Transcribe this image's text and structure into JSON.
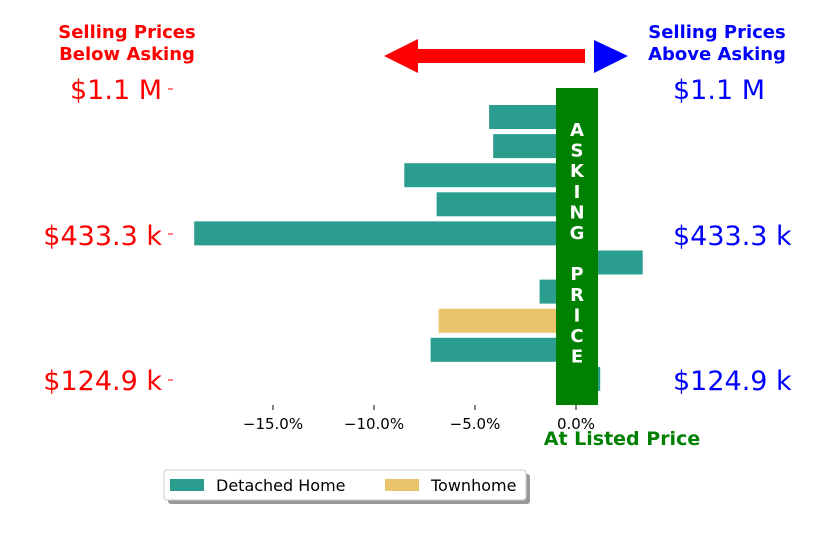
{
  "colors": {
    "below": "#ff0000",
    "above": "#0000ff",
    "asking": "#008000",
    "detached": "#2a9d8f",
    "townhome": "#e9c46a",
    "text": "#000000",
    "white": "#ffffff"
  },
  "header": {
    "below_title_line1": "Selling Prices",
    "below_title_line2": "Below Asking",
    "above_title_line1": "Selling Prices",
    "above_title_line2": "Above Asking"
  },
  "asking_label": "ASKING PRICE",
  "listed_label": "At Listed Price",
  "side_labels": {
    "top": "$1.1 M",
    "middle": "$433.3 k",
    "bottom": "$124.9 k"
  },
  "chart_data": {
    "type": "bar",
    "orientation": "horizontal",
    "xlim": [
      -19.5,
      1.3
    ],
    "xticks": [
      -15,
      -10,
      -5,
      0
    ],
    "tick_labels": [
      "−15.0%",
      "−10.0%",
      "−5.0%",
      "0.0%"
    ],
    "bars": [
      {
        "series": "Detached Home",
        "value": -4.3
      },
      {
        "series": "Detached Home",
        "value": -4.1
      },
      {
        "series": "Detached Home",
        "value": -8.5
      },
      {
        "series": "Detached Home",
        "value": -6.9
      },
      {
        "series": "Detached Home",
        "value": -18.9
      },
      {
        "series": "Detached Home",
        "value": 3.3
      },
      {
        "series": "Detached Home",
        "value": -1.8
      },
      {
        "series": "Townhome",
        "value": -6.8
      },
      {
        "series": "Detached Home",
        "value": -7.2
      },
      {
        "series": "Detached Home",
        "value": 1.2
      }
    ],
    "series": [
      {
        "name": "Detached Home",
        "color": "#2a9d8f"
      },
      {
        "name": "Townhome",
        "color": "#e9c46a"
      }
    ],
    "legend": {
      "position": "bottom-left",
      "entries": [
        "Detached Home",
        "Townhome"
      ]
    }
  }
}
